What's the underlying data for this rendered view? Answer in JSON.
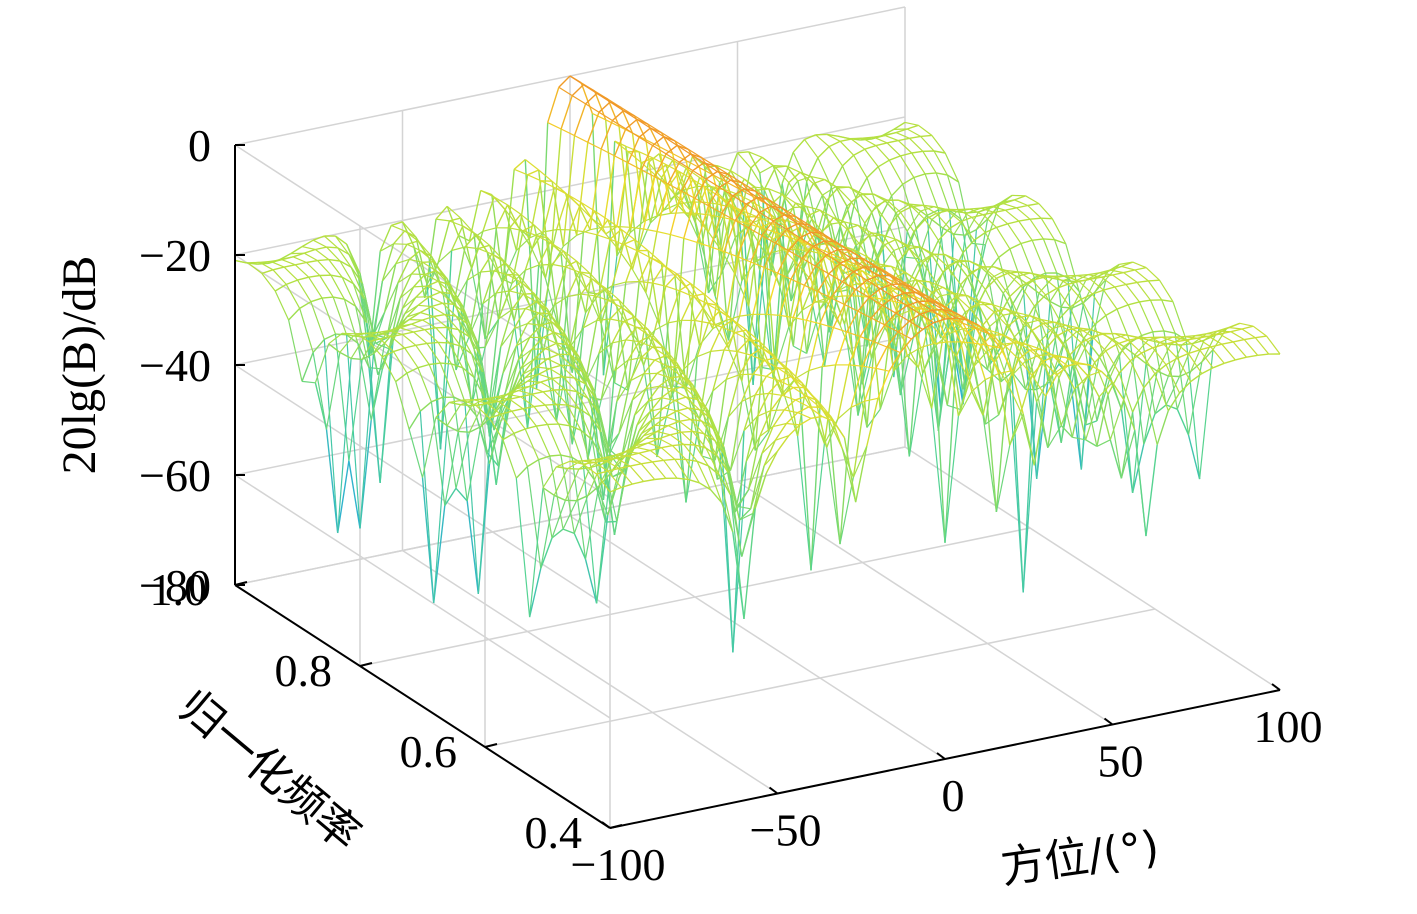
{
  "chart_data": {
    "type": "surface",
    "title": "",
    "xlabel": "方位/(°)",
    "ylabel": "归一化频率",
    "zlabel": "20lg(B)/dB",
    "x_ticks": [
      "−100",
      "−50",
      "0",
      "50",
      "100"
    ],
    "x_tick_values": [
      -100,
      -50,
      0,
      50,
      100
    ],
    "y_ticks": [
      "0.4",
      "0.6",
      "0.8",
      "1.0"
    ],
    "y_tick_values": [
      0.4,
      0.6,
      0.8,
      1.0
    ],
    "z_ticks": [
      "0",
      "−20",
      "−40",
      "−60",
      "−80"
    ],
    "z_tick_values": [
      0,
      -20,
      -40,
      -60,
      -80
    ],
    "xlim": [
      -100,
      100
    ],
    "ylim": [
      0.4,
      1.0
    ],
    "zlim": [
      -80,
      0
    ],
    "grid": true,
    "colormap": "parula",
    "colors": {
      "grid": "#d4d4d4",
      "axis": "#000000"
    },
    "main_lobe": {
      "azimuth_deg": 0,
      "peak_db": 0
    },
    "sidelobe_level_db": -22,
    "nulls_azimuth_deg": [
      -85,
      -70,
      -45,
      -32,
      -15,
      40,
      60,
      80
    ]
  }
}
